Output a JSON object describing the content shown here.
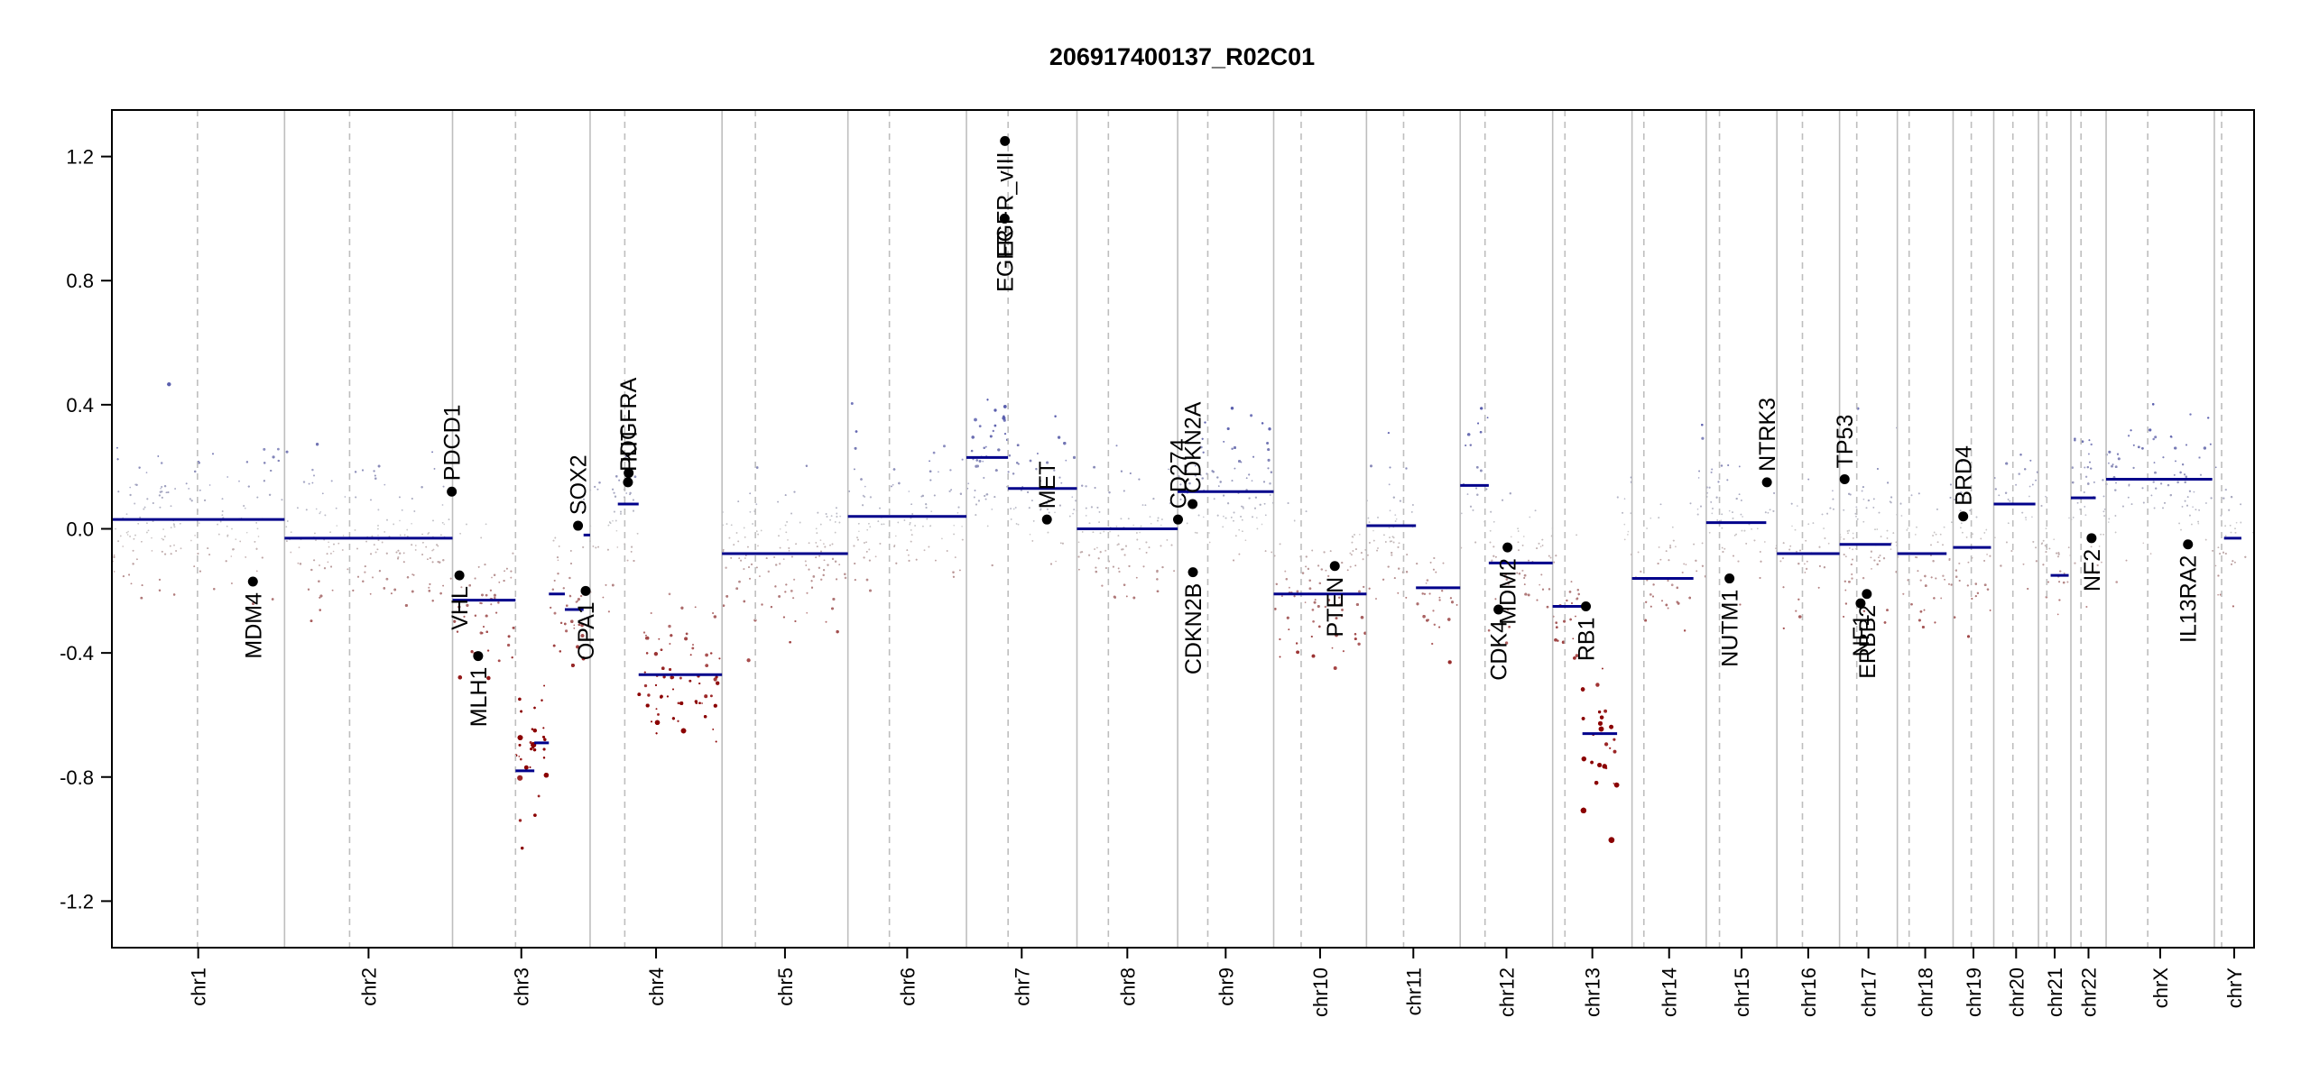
{
  "chart_data": {
    "type": "scatter",
    "title": "206917400137_R02C01",
    "xlabel": "",
    "ylabel": "",
    "ylim": [
      -1.35,
      1.35
    ],
    "yticks": [
      -1.2,
      -0.8,
      -0.4,
      0.0,
      0.4,
      0.8,
      1.2
    ],
    "ytick_labels": [
      "-1.2",
      "-0.8",
      "-0.4",
      "0.0",
      "0.4",
      "0.8",
      "1.2"
    ],
    "grid": false,
    "legend": "none",
    "colors": {
      "gain": "#5b5fae",
      "neutral": "#c8c8c8",
      "loss": "#8b0000",
      "segment": "#00008b",
      "gene_point": "#000000",
      "boundary": "#bebebe",
      "centromere": "#bebebe"
    },
    "chromosomes": [
      {
        "name": "chr1",
        "start": 0,
        "end": 248.9,
        "centromere": 123.4
      },
      {
        "name": "chr2",
        "start": 248.9,
        "end": 491.1,
        "centromere": 342.7
      },
      {
        "name": "chr3",
        "start": 491.1,
        "end": 689.4,
        "centromere": 581.9
      },
      {
        "name": "chr4",
        "start": 689.4,
        "end": 879.6,
        "centromere": 739.4
      },
      {
        "name": "chr5",
        "start": 879.6,
        "end": 1061.1,
        "centromere": 927.7
      },
      {
        "name": "chr6",
        "start": 1061.1,
        "end": 1232.0,
        "centromere": 1120.9
      },
      {
        "name": "chr7",
        "start": 1232.0,
        "end": 1391.3,
        "centromere": 1292.0
      },
      {
        "name": "chr8",
        "start": 1391.3,
        "end": 1536.5,
        "centromere": 1436.6
      },
      {
        "name": "chr9",
        "start": 1536.5,
        "end": 1674.9,
        "centromere": 1579.9
      },
      {
        "name": "chr10",
        "start": 1674.9,
        "end": 1808.7,
        "centromere": 1714.5
      },
      {
        "name": "chr11",
        "start": 1808.7,
        "end": 1943.8,
        "centromere": 1862.2
      },
      {
        "name": "chr12",
        "start": 1943.8,
        "end": 2077.1,
        "centromere": 1979.6
      },
      {
        "name": "chr13",
        "start": 2077.1,
        "end": 2191.5,
        "centromere": 2094.8
      },
      {
        "name": "chr14",
        "start": 2191.5,
        "end": 2298.5,
        "centromere": 2208.6
      },
      {
        "name": "chr15",
        "start": 2298.5,
        "end": 2400.4,
        "centromere": 2317.6
      },
      {
        "name": "chr16",
        "start": 2400.4,
        "end": 2490.7,
        "centromere": 2437.2
      },
      {
        "name": "chr17",
        "start": 2490.7,
        "end": 2574.0,
        "centromere": 2515.5
      },
      {
        "name": "chr18",
        "start": 2574.0,
        "end": 2654.4,
        "centromere": 2591.0
      },
      {
        "name": "chr19",
        "start": 2654.4,
        "end": 2713.0,
        "centromere": 2680.6
      },
      {
        "name": "chr20",
        "start": 2713.0,
        "end": 2777.5,
        "centromere": 2740.6
      },
      {
        "name": "chr21",
        "start": 2777.5,
        "end": 2824.2,
        "centromere": 2789.5
      },
      {
        "name": "chr22",
        "start": 2824.2,
        "end": 2875.0,
        "centromere": 2838.8
      },
      {
        "name": "chrX",
        "start": 2875.0,
        "end": 3031.0,
        "centromere": 2935.0
      },
      {
        "name": "chrY",
        "start": 3031.0,
        "end": 3088.3,
        "centromere": 3041.5
      }
    ],
    "segments": [
      {
        "start": 0,
        "end": 248.9,
        "value": 0.03
      },
      {
        "start": 248.9,
        "end": 491.1,
        "value": -0.03
      },
      {
        "start": 491.1,
        "end": 581.9,
        "value": -0.23
      },
      {
        "start": 581.9,
        "end": 609.0,
        "value": -0.78
      },
      {
        "start": 609.0,
        "end": 630.0,
        "value": -0.69
      },
      {
        "start": 630.0,
        "end": 653.0,
        "value": -0.21
      },
      {
        "start": 653.0,
        "end": 680.0,
        "value": -0.26
      },
      {
        "start": 680.0,
        "end": 689.4,
        "value": -0.02
      },
      {
        "start": 729.4,
        "end": 759.4,
        "value": 0.08
      },
      {
        "start": 759.4,
        "end": 879.6,
        "value": -0.47
      },
      {
        "start": 879.6,
        "end": 1061.1,
        "value": -0.08
      },
      {
        "start": 1061.1,
        "end": 1232.0,
        "value": 0.04
      },
      {
        "start": 1232.0,
        "end": 1292.0,
        "value": 0.23
      },
      {
        "start": 1292.0,
        "end": 1391.3,
        "value": 0.13
      },
      {
        "start": 1391.3,
        "end": 1536.5,
        "value": 0.0
      },
      {
        "start": 1536.5,
        "end": 1674.9,
        "value": 0.12
      },
      {
        "start": 1674.9,
        "end": 1808.7,
        "value": -0.21
      },
      {
        "start": 1808.7,
        "end": 1880.0,
        "value": 0.01
      },
      {
        "start": 1880.0,
        "end": 1943.8,
        "value": -0.19
      },
      {
        "start": 1943.8,
        "end": 1985.0,
        "value": 0.14
      },
      {
        "start": 1985.0,
        "end": 2077.1,
        "value": -0.11
      },
      {
        "start": 2077.1,
        "end": 2120.0,
        "value": -0.25
      },
      {
        "start": 2120.0,
        "end": 2170.0,
        "value": -0.66
      },
      {
        "start": 2191.5,
        "end": 2280.0,
        "value": -0.16
      },
      {
        "start": 2298.5,
        "end": 2385.0,
        "value": 0.02
      },
      {
        "start": 2400.4,
        "end": 2490.7,
        "value": -0.08
      },
      {
        "start": 2490.7,
        "end": 2565.0,
        "value": -0.05
      },
      {
        "start": 2574.0,
        "end": 2645.0,
        "value": -0.08
      },
      {
        "start": 2654.4,
        "end": 2709.0,
        "value": -0.06
      },
      {
        "start": 2713.0,
        "end": 2773.0,
        "value": 0.08
      },
      {
        "start": 2795.0,
        "end": 2821.0,
        "value": -0.15
      },
      {
        "start": 2824.2,
        "end": 2860.0,
        "value": 0.1
      },
      {
        "start": 2875.0,
        "end": 3028.0,
        "value": 0.16
      },
      {
        "start": 3045.0,
        "end": 3070.0,
        "value": -0.03
      }
    ],
    "genes": [
      {
        "name": "MDM4",
        "pos": 203.3,
        "value": -0.17,
        "label_side": "below"
      },
      {
        "name": "PDCD1",
        "pos": 490.0,
        "value": 0.12,
        "label_side": "above"
      },
      {
        "name": "VHL",
        "pos": 501.0,
        "value": -0.15,
        "label_side": "below"
      },
      {
        "name": "MLH1",
        "pos": 528.0,
        "value": -0.41,
        "label_side": "below"
      },
      {
        "name": "SOX2",
        "pos": 672.0,
        "value": 0.01,
        "label_side": "above"
      },
      {
        "name": "OPA1",
        "pos": 683.0,
        "value": -0.2,
        "label_side": "below"
      },
      {
        "name": "PDGFRA",
        "pos": 744.0,
        "value": 0.15,
        "label_side": "above"
      },
      {
        "name": "KIT",
        "pos": 745.0,
        "value": 0.18,
        "label_side": "above"
      },
      {
        "name": "EGFR",
        "pos": 1287.0,
        "value": 1.0,
        "label_side": "below"
      },
      {
        "name": "EGFR_vIII",
        "pos": 1287.5,
        "value": 1.25,
        "label_side": "below"
      },
      {
        "name": "MET",
        "pos": 1348.0,
        "value": 0.03,
        "label_side": "above"
      },
      {
        "name": "CD274",
        "pos": 1537.0,
        "value": 0.03,
        "label_side": "above"
      },
      {
        "name": "CDKN2A",
        "pos": 1558.0,
        "value": 0.08,
        "label_side": "above"
      },
      {
        "name": "CDKN2B",
        "pos": 1558.5,
        "value": -0.14,
        "label_side": "below"
      },
      {
        "name": "PTEN",
        "pos": 1763.0,
        "value": -0.12,
        "label_side": "below"
      },
      {
        "name": "CDK4",
        "pos": 1999.0,
        "value": -0.26,
        "label_side": "below"
      },
      {
        "name": "MDM2",
        "pos": 2012.0,
        "value": -0.06,
        "label_side": "below"
      },
      {
        "name": "RB1",
        "pos": 2125.0,
        "value": -0.25,
        "label_side": "below"
      },
      {
        "name": "NUTM1",
        "pos": 2332.0,
        "value": -0.16,
        "label_side": "below"
      },
      {
        "name": "NTRK3",
        "pos": 2386.0,
        "value": 0.15,
        "label_side": "above"
      },
      {
        "name": "TP53",
        "pos": 2498.0,
        "value": 0.16,
        "label_side": "above"
      },
      {
        "name": "NF1",
        "pos": 2521.0,
        "value": -0.24,
        "label_side": "below"
      },
      {
        "name": "ERBB2",
        "pos": 2530.0,
        "value": -0.21,
        "label_side": "below"
      },
      {
        "name": "BRD4",
        "pos": 2669.0,
        "value": 0.04,
        "label_side": "above"
      },
      {
        "name": "NF2",
        "pos": 2854.0,
        "value": -0.03,
        "label_side": "below"
      },
      {
        "name": "IL13RA2",
        "pos": 2993.0,
        "value": -0.05,
        "label_side": "below"
      }
    ]
  }
}
